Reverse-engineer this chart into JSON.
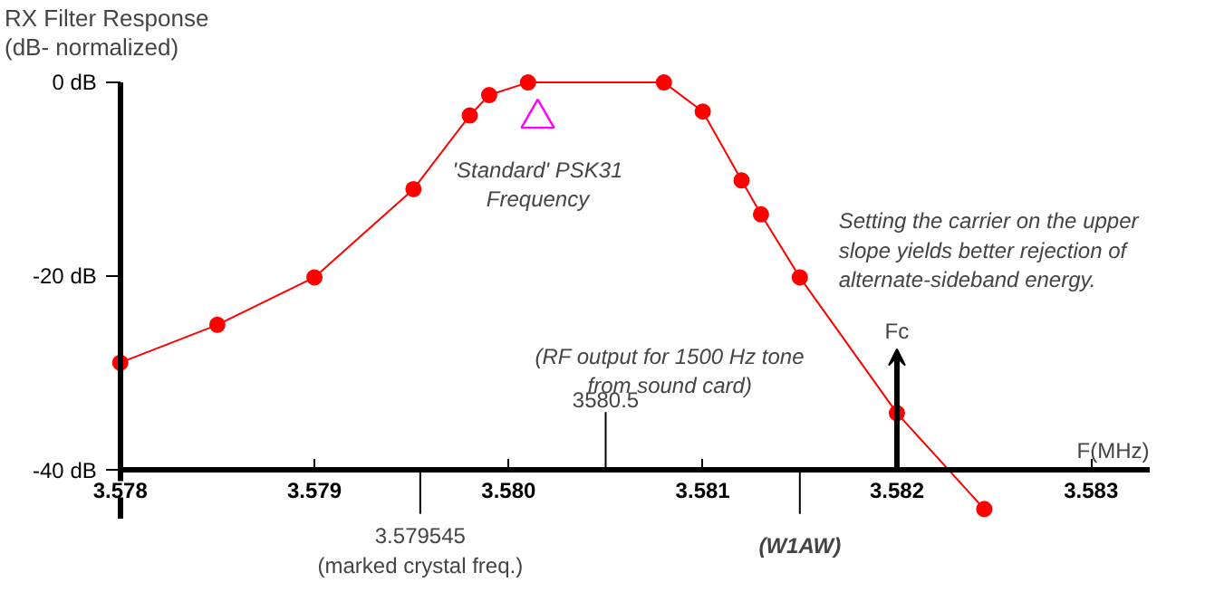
{
  "chart_data": {
    "type": "line",
    "title": "RX Filter Response",
    "subtitle": "(dB- normalized)",
    "xlabel": "F(MHz)",
    "xlim": [
      3.578,
      3.5833
    ],
    "ylim": [
      -45,
      0
    ],
    "xticks": [
      3.578,
      3.579,
      {
        "value": 3.58,
        "label": "3.580"
      },
      3.581,
      3.582,
      3.583
    ],
    "yticks": [
      {
        "value": 0,
        "label": "0 dB"
      },
      {
        "value": -20,
        "label": "-20 dB"
      },
      {
        "value": -40,
        "label": "-40 dB"
      }
    ],
    "grid": false,
    "marker": "circle",
    "line_style": "solid",
    "series": [
      {
        "color": "#ff0000",
        "x": [
          3.578,
          3.5785,
          3.579,
          3.57951,
          3.5798,
          3.5799,
          3.5801,
          3.5808,
          3.581,
          3.5812,
          3.5813,
          3.5815,
          3.582,
          3.58245
        ],
        "values": [
          -28.9,
          -25.0,
          -20.1,
          -11.0,
          -3.4,
          -1.3,
          0,
          0,
          -3.0,
          -10.1,
          -13.6,
          -20.1,
          -34.1,
          -44.0
        ]
      },
      {
        "type": "scatter",
        "marker": "triangle",
        "color": "#ff00ff",
        "x": [
          3.58015
        ],
        "values": [
          -3.7
        ]
      }
    ],
    "annotations": [
      "3.579545\n(marked crystal freq.)",
      "3580.5",
      "(W1AW)",
      "Fc",
      {
        "text": "'Standard' PSK31\nFrequency",
        "x": 3.58015,
        "y": -3.7
      },
      "(RF output for 1500 Hz tone\nfrom sound card)",
      "Setting the carrier on the upper\nslope yields better rejection of\nalternate-sideband energy."
    ]
  }
}
